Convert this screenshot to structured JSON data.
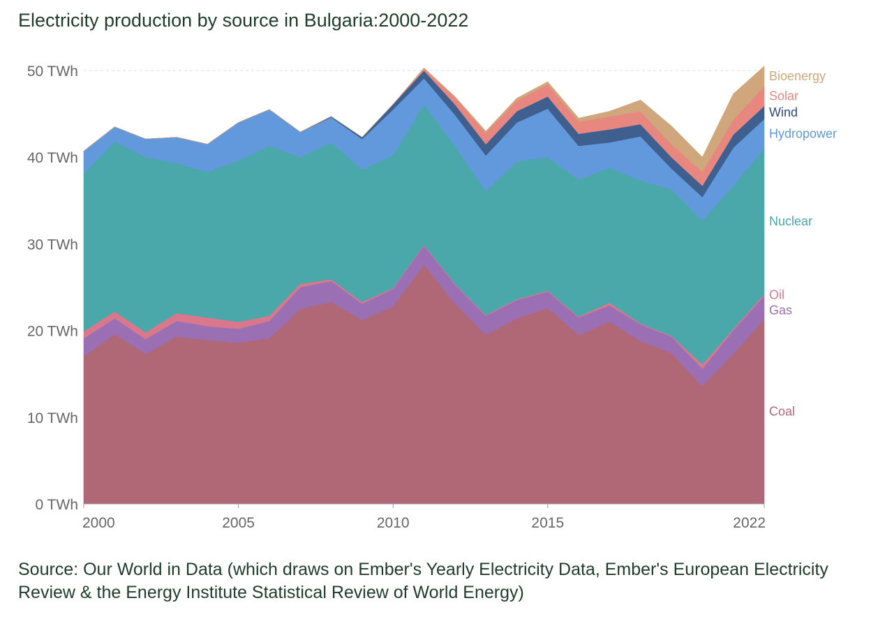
{
  "title": "Electricity production by source in Bulgaria:2000-2022",
  "source": "Source: Our World in Data (which draws on Ember's Yearly Electricity Data, Ember's European Electricity Review & the Energy Institute Statistical Review of World Energy)",
  "chart_data": {
    "type": "area",
    "stacked": true,
    "x": [
      2000,
      2001,
      2002,
      2003,
      2004,
      2005,
      2006,
      2007,
      2008,
      2009,
      2010,
      2011,
      2012,
      2013,
      2014,
      2015,
      2016,
      2017,
      2018,
      2019,
      2020,
      2021,
      2022
    ],
    "xlim": [
      2000,
      2022
    ],
    "ylim": [
      0,
      50
    ],
    "yticks": [
      0,
      10,
      20,
      30,
      40,
      50
    ],
    "yunit": "TWh",
    "ytick_labels": [
      "0 TWh",
      "10 TWh",
      "20 TWh",
      "30 TWh",
      "40 TWh",
      "50 TWh"
    ],
    "xtick_labels": [
      {
        "x": 2000,
        "label": "2000"
      },
      {
        "x": 2005,
        "label": "2005"
      },
      {
        "x": 2010,
        "label": "2010"
      },
      {
        "x": 2015,
        "label": "2015"
      },
      {
        "x": 2022,
        "label": "2022"
      }
    ],
    "grid": "horizontal dashed",
    "legend": "right, inline labels",
    "series": [
      {
        "name": "Coal",
        "color": "#b06877",
        "values": [
          17.0,
          19.6,
          17.3,
          19.3,
          18.9,
          18.6,
          19.1,
          22.5,
          23.3,
          21.2,
          22.8,
          27.6,
          23.1,
          19.5,
          21.4,
          22.6,
          19.5,
          21.0,
          18.8,
          17.4,
          13.6,
          17.3,
          21.3
        ]
      },
      {
        "name": "Gas",
        "color": "#9b6fb4",
        "values": [
          2.1,
          1.8,
          1.7,
          1.8,
          1.6,
          1.6,
          2.0,
          2.5,
          2.4,
          1.9,
          2.0,
          2.2,
          2.2,
          2.2,
          2.1,
          1.9,
          2.0,
          1.9,
          1.9,
          1.9,
          2.0,
          2.7,
          2.7
        ]
      },
      {
        "name": "Oil",
        "color": "#d9788c",
        "values": [
          0.8,
          0.8,
          0.8,
          0.9,
          1.0,
          0.8,
          0.6,
          0.4,
          0.2,
          0.2,
          0.1,
          0.1,
          0.1,
          0.1,
          0.1,
          0.1,
          0.1,
          0.3,
          0.1,
          0.1,
          0.5,
          0.2,
          0.2
        ]
      },
      {
        "name": "Nuclear",
        "color": "#4aa7aa",
        "values": [
          18.2,
          19.6,
          20.2,
          17.3,
          16.8,
          18.6,
          19.6,
          14.6,
          15.8,
          15.3,
          15.3,
          16.2,
          15.9,
          14.3,
          15.9,
          15.4,
          15.8,
          15.6,
          16.5,
          16.9,
          16.6,
          16.5,
          16.8
        ]
      },
      {
        "name": "Hydropower",
        "color": "#6299dc",
        "values": [
          2.6,
          1.7,
          2.1,
          3.0,
          3.2,
          4.4,
          4.2,
          2.9,
          2.9,
          3.5,
          5.3,
          3.0,
          3.6,
          4.1,
          4.5,
          5.6,
          3.9,
          2.9,
          5.1,
          2.4,
          2.7,
          4.4,
          3.4
        ]
      },
      {
        "name": "Wind",
        "color": "#3f5f8f",
        "values": [
          0.0,
          0.0,
          0.0,
          0.0,
          0.0,
          0.0,
          0.0,
          0.0,
          0.1,
          0.2,
          0.6,
          0.9,
          1.2,
          1.3,
          1.3,
          1.4,
          1.4,
          1.5,
          1.4,
          1.3,
          1.3,
          1.5,
          1.5
        ]
      },
      {
        "name": "Solar",
        "color": "#e8877f",
        "values": [
          0.0,
          0.0,
          0.0,
          0.0,
          0.0,
          0.0,
          0.0,
          0.0,
          0.0,
          0.0,
          0.0,
          0.2,
          0.8,
          1.3,
          1.2,
          1.4,
          1.4,
          1.5,
          1.5,
          1.5,
          1.6,
          1.7,
          2.3
        ]
      },
      {
        "name": "Bioenergy",
        "color": "#d0a67c",
        "values": [
          0.0,
          0.0,
          0.0,
          0.0,
          0.0,
          0.0,
          0.0,
          0.0,
          0.0,
          0.0,
          0.0,
          0.1,
          0.1,
          0.2,
          0.3,
          0.3,
          0.4,
          0.6,
          1.3,
          2.1,
          1.7,
          3.0,
          2.3
        ]
      }
    ]
  }
}
